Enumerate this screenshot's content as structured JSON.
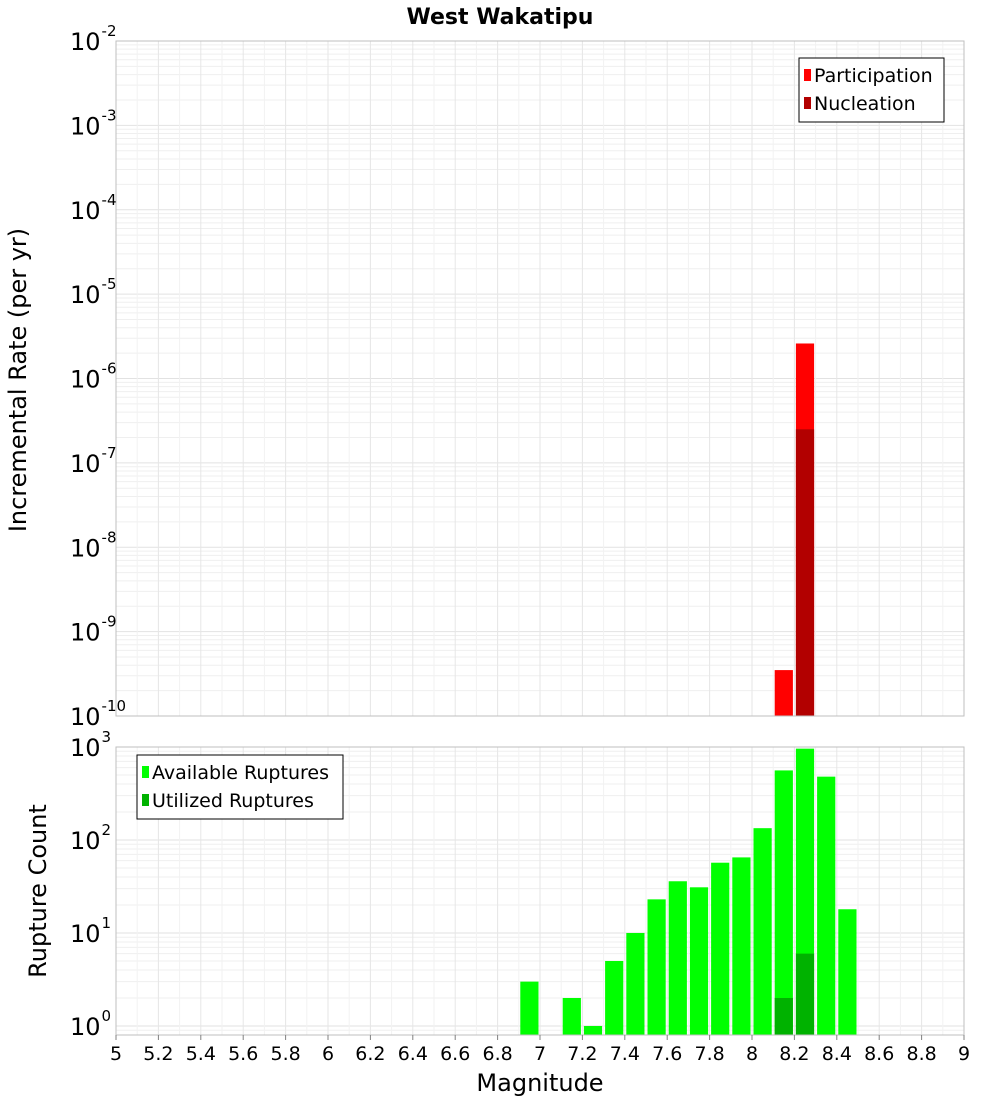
{
  "chart_data": {
    "type": "bar",
    "title": "West Wakatipu",
    "xlabel": "Magnitude",
    "xlim": [
      5,
      9
    ],
    "x_ticks": [
      "5",
      "5.2",
      "5.4",
      "5.6",
      "5.8",
      "6",
      "6.2",
      "6.4",
      "6.6",
      "6.8",
      "7",
      "7.2",
      "7.4",
      "7.6",
      "7.8",
      "8",
      "8.2",
      "8.4",
      "8.6",
      "8.8",
      "9"
    ],
    "bin_width": 0.1,
    "top_panel": {
      "ylabel": "Incremental Rate (per yr)",
      "yscale": "log",
      "ylim": [
        1e-10,
        0.01
      ],
      "y_tick_exponents": [
        "-2",
        "-3",
        "-4",
        "-5",
        "-6",
        "-7",
        "-8",
        "-9",
        "-10"
      ],
      "y_tick_base": "10",
      "legend": [
        "Participation",
        "Nucleation"
      ],
      "colors": {
        "Participation": "#ff0000",
        "Nucleation": "#b20000"
      },
      "series": [
        {
          "name": "Participation",
          "x": [
            8.15,
            8.25
          ],
          "values": [
            3.5e-10,
            2.6e-06
          ]
        },
        {
          "name": "Nucleation",
          "x": [
            8.25
          ],
          "values": [
            2.5e-07
          ]
        }
      ]
    },
    "bottom_panel": {
      "ylabel": "Rupture Count",
      "yscale": "log",
      "ylim": [
        0.8,
        1000
      ],
      "y_tick_exponents": [
        "3",
        "2",
        "1",
        "0"
      ],
      "y_tick_base": "10",
      "legend": [
        "Available Ruptures",
        "Utilized Ruptures"
      ],
      "colors": {
        "Available Ruptures": "#00ff00",
        "Utilized Ruptures": "#00b200"
      },
      "series": [
        {
          "name": "Available Ruptures",
          "x": [
            6.95,
            7.15,
            7.25,
            7.35,
            7.45,
            7.55,
            7.65,
            7.75,
            7.85,
            7.95,
            8.05,
            8.15,
            8.25,
            8.35,
            8.45
          ],
          "values": [
            3,
            2,
            1,
            5,
            10,
            23,
            36,
            31,
            57,
            65,
            134,
            560,
            960,
            480,
            18
          ]
        },
        {
          "name": "Utilized Ruptures",
          "x": [
            8.15,
            8.25
          ],
          "values": [
            2,
            6
          ]
        }
      ]
    }
  }
}
